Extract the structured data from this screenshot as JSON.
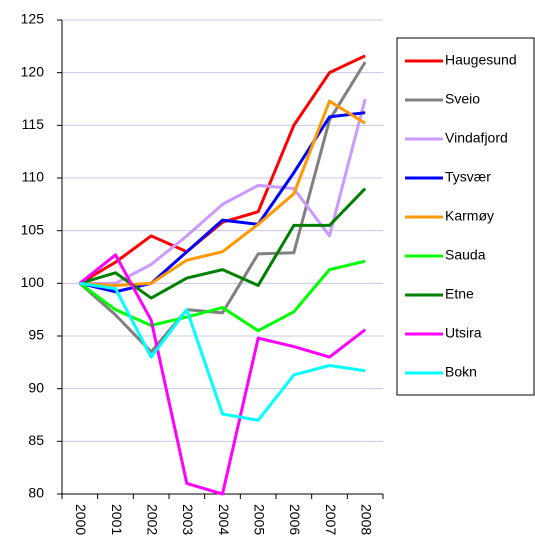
{
  "chart_data": {
    "type": "line",
    "categories": [
      "2000",
      "2001",
      "2002",
      "2003",
      "2004",
      "2005",
      "2006",
      "2007",
      "2008"
    ],
    "series": [
      {
        "name": "Haugesund",
        "color": "#ff0000",
        "values": [
          100,
          102,
          104.5,
          103,
          105.8,
          106.8,
          115,
          120,
          121.6
        ]
      },
      {
        "name": "Sveio",
        "color": "#808080",
        "values": [
          100,
          97,
          93.5,
          97.5,
          97.2,
          102.8,
          102.9,
          115.5,
          121
        ]
      },
      {
        "name": "Vindafjord",
        "color": "#cc99ff",
        "values": [
          100,
          100,
          101.8,
          104.5,
          107.5,
          109.3,
          109,
          104.5,
          117.5
        ]
      },
      {
        "name": "Tysvær",
        "color": "#0000ff",
        "values": [
          100,
          99.2,
          100,
          103,
          106,
          105.6,
          110.5,
          115.8,
          116.2
        ]
      },
      {
        "name": "Karmøy",
        "color": "#ff9900",
        "values": [
          100,
          99.8,
          100,
          102.2,
          103,
          105.6,
          108.5,
          117.3,
          115.2
        ]
      },
      {
        "name": "Sauda",
        "color": "#00ff00",
        "values": [
          100,
          97.5,
          96,
          96.8,
          97.7,
          95.5,
          97.3,
          101.3,
          102.1
        ]
      },
      {
        "name": "Etne",
        "color": "#008000",
        "values": [
          100,
          101,
          98.6,
          100.5,
          101.3,
          99.8,
          105.5,
          105.5,
          109
        ]
      },
      {
        "name": "Utsira",
        "color": "#ff00ff",
        "values": [
          100,
          102.7,
          96.5,
          81,
          80,
          94.8,
          94,
          93,
          95.6
        ]
      },
      {
        "name": "Bokn",
        "color": "#00ffff",
        "values": [
          100,
          99.5,
          93,
          97.5,
          87.6,
          87,
          91.3,
          92.2,
          91.7
        ]
      }
    ],
    "ylim": [
      80,
      125
    ],
    "yticks": [
      80,
      85,
      90,
      95,
      100,
      105,
      110,
      115,
      120,
      125
    ],
    "grid": true,
    "legend": "right"
  }
}
